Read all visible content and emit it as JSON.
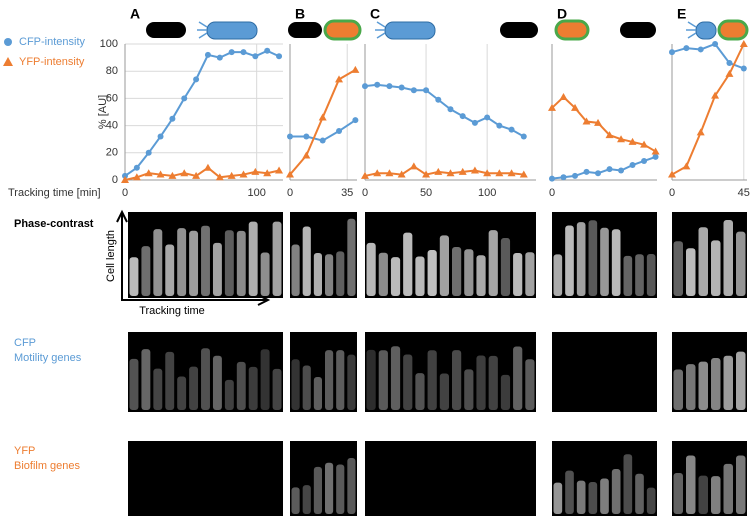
{
  "chart_data": [
    {
      "type": "line",
      "panel": "A",
      "ylabel": "% [AU]",
      "xlabel": "Tracking time [min]",
      "x": [
        0,
        9,
        18,
        27,
        36,
        45,
        54,
        63,
        72,
        81,
        90,
        99,
        108,
        117
      ],
      "series": [
        {
          "name": "CFP-intensity",
          "color": "#5b9bd5",
          "marker": "circle",
          "values": [
            3,
            9,
            20,
            32,
            45,
            60,
            74,
            92,
            90,
            94,
            94,
            91,
            95,
            91
          ]
        },
        {
          "name": "YFP-intensity",
          "color": "#ed7d31",
          "marker": "triangle",
          "values": [
            0,
            2,
            5,
            4,
            3,
            5,
            3,
            9,
            2,
            3,
            4,
            6,
            5,
            7
          ]
        }
      ],
      "xlim": [
        0,
        120
      ],
      "xticks": [
        0,
        100
      ],
      "ylim": [
        0,
        100
      ],
      "yticks": [
        0,
        20,
        40,
        60,
        80,
        100
      ],
      "grid": true
    },
    {
      "type": "line",
      "panel": "B",
      "x": [
        0,
        10,
        20,
        30,
        40
      ],
      "series": [
        {
          "color": "#5b9bd5",
          "marker": "circle",
          "values": [
            32,
            32,
            29,
            36,
            44
          ]
        },
        {
          "color": "#ed7d31",
          "marker": "triangle",
          "values": [
            4,
            18,
            46,
            74,
            81
          ]
        }
      ],
      "xlim": [
        0,
        41
      ],
      "xticks": [
        0,
        35
      ],
      "ylim": [
        0,
        100
      ],
      "grid": true
    },
    {
      "type": "line",
      "panel": "C",
      "x": [
        0,
        10,
        20,
        30,
        40,
        50,
        60,
        70,
        80,
        90,
        100,
        110,
        120,
        130
      ],
      "series": [
        {
          "color": "#5b9bd5",
          "marker": "circle",
          "values": [
            69,
            70,
            69,
            68,
            66,
            66,
            59,
            52,
            47,
            42,
            46,
            40,
            37,
            32
          ]
        },
        {
          "color": "#ed7d31",
          "marker": "triangle",
          "values": [
            3,
            5,
            5,
            4,
            10,
            4,
            6,
            5,
            6,
            7,
            5,
            5,
            5,
            4
          ]
        }
      ],
      "xlim": [
        0,
        140
      ],
      "xticks": [
        0,
        50,
        100
      ],
      "ylim": [
        0,
        100
      ],
      "grid": true
    },
    {
      "type": "line",
      "panel": "D",
      "x": [
        0,
        8,
        16,
        24,
        32,
        40,
        48,
        56,
        64,
        72
      ],
      "series": [
        {
          "color": "#5b9bd5",
          "marker": "circle",
          "values": [
            1,
            2,
            3,
            6,
            5,
            8,
            7,
            11,
            14,
            17
          ]
        },
        {
          "color": "#ed7d31",
          "marker": "triangle",
          "values": [
            53,
            61,
            53,
            43,
            42,
            33,
            30,
            28,
            26,
            21
          ]
        }
      ],
      "xlim": [
        0,
        73
      ],
      "xticks": [
        0
      ],
      "ylim": [
        0,
        100
      ],
      "grid": true
    },
    {
      "type": "line",
      "panel": "E",
      "x": [
        0,
        9,
        18,
        27,
        36,
        45
      ],
      "series": [
        {
          "color": "#5b9bd5",
          "marker": "circle",
          "values": [
            94,
            97,
            96,
            100,
            86,
            82
          ]
        },
        {
          "color": "#ed7d31",
          "marker": "triangle",
          "values": [
            4,
            10,
            35,
            62,
            78,
            100
          ]
        }
      ],
      "xlim": [
        0,
        47
      ],
      "xticks": [
        0,
        45
      ],
      "ylim": [
        0,
        100
      ],
      "grid": true
    }
  ],
  "image_rows": {
    "phase": "Phase-contrast",
    "cell_length": "Cell length",
    "tracking_time": "Tracking time",
    "cfp": [
      "CFP",
      "Motility genes"
    ],
    "yfp": [
      "YFP",
      "Biofilm genes"
    ]
  }
}
